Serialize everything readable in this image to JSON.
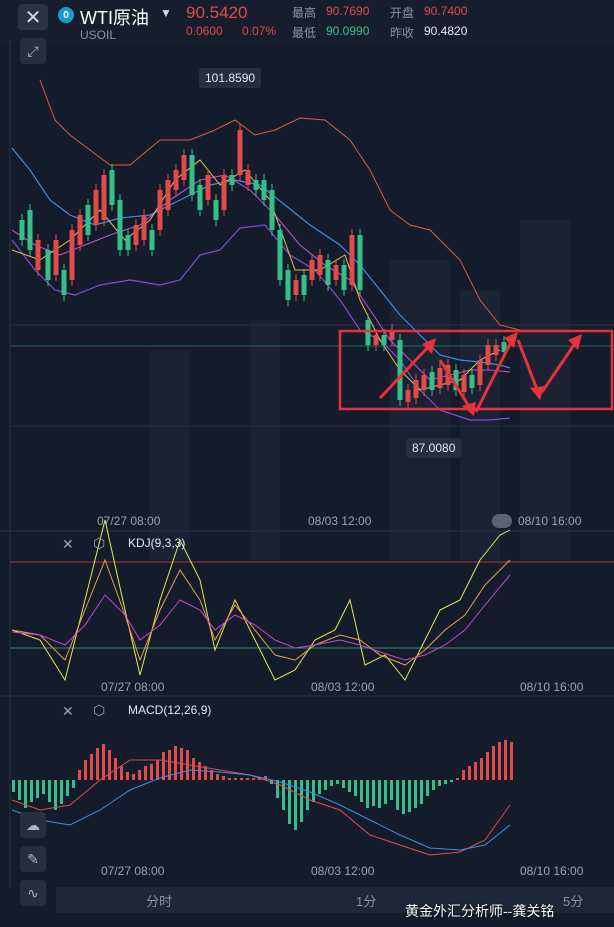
{
  "header": {
    "close_icon": "close-icon",
    "symbol": "WTI原油",
    "symbol_code": "USOIL",
    "price": "90.5420",
    "change": "0.0600",
    "change_pct": "0.07%",
    "high_label": "最高",
    "high_value": "90.7690",
    "open_label": "开盘",
    "open_value": "90.7400",
    "low_label": "最低",
    "low_value": "90.0990",
    "prev_label": "昨收",
    "prev_value": "90.4820"
  },
  "main_chart": {
    "max_label": "101.8590",
    "min_label": "87.0080",
    "x_ticks": [
      "07/27 08:00",
      "08/03 12:00",
      "08/10 16:00"
    ]
  },
  "kdj": {
    "title": "KDJ(9,3,3)",
    "x_ticks": [
      "07/27 08:00",
      "08/03 12:00",
      "08/10 16:00"
    ]
  },
  "macd": {
    "title": "MACD(12,26,9)",
    "x_ticks": [
      "07/27 08:00",
      "08/03 12:00",
      "08/10 16:00"
    ]
  },
  "tabs": [
    "分时",
    "1分",
    "5分"
  ],
  "watermark": "黄金外汇分析师--龚关铭",
  "colors": {
    "up": "#e04b4b",
    "down": "#35c08a",
    "bg": "#141b2b",
    "box": "#e8313a"
  }
}
